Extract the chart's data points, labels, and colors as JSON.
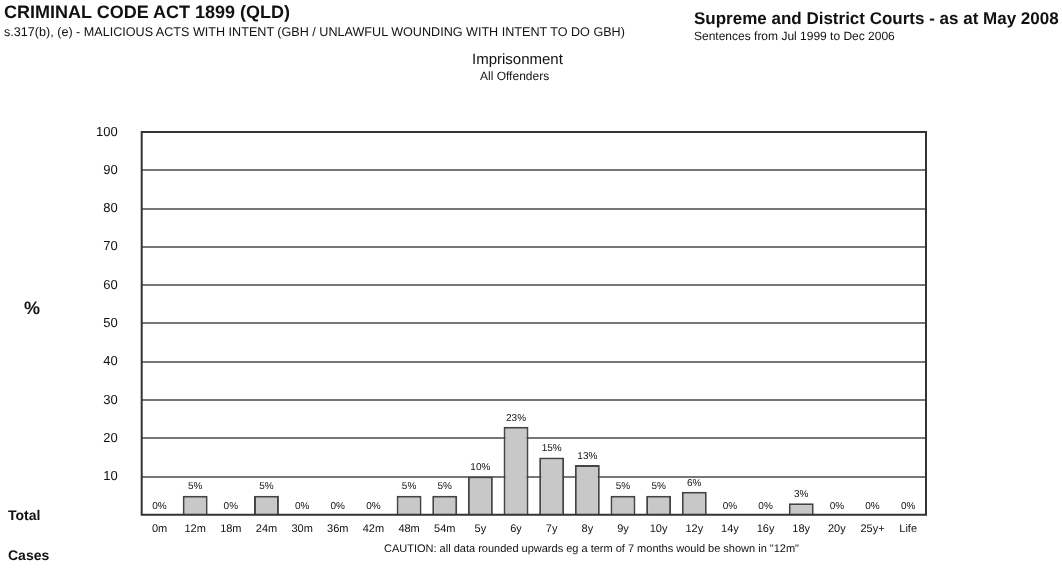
{
  "chart_data": {
    "type": "bar",
    "title": "CRIMINAL CODE ACT 1899 (QLD)",
    "subtitle": "s.317(b), (e) - MALICIOUS ACTS WITH INTENT (GBH  / UNLAWFUL WOUNDING WITH INTENT TO DO GBH)",
    "ylabel": "%",
    "annotations": [
      "Supreme and District Courts - as at May 2008",
      "Sentences from Jul 1999 to Dec 2006",
      "Imprisonment",
      "All Offenders",
      "Total",
      "Cases",
      "CAUTION: all data rounded upwards eg a term of 7 months would be shown in \"12m\""
    ],
    "categories": [
      "0m",
      "12m",
      "18m",
      "24m",
      "30m",
      "36m",
      "42m",
      "48m",
      "54m",
      "5y",
      "6y",
      "7y",
      "8y",
      "9y",
      "10y",
      "12y",
      "14y",
      "16y",
      "18y",
      "20y",
      "25y+",
      "Life"
    ],
    "values": [
      0,
      5,
      0,
      5,
      0,
      0,
      0,
      5,
      5,
      10,
      23,
      15,
      13,
      5,
      5,
      6,
      0,
      0,
      3,
      0,
      0,
      0
    ],
    "value_labels": [
      "0%",
      "5%",
      "0%",
      "5%",
      "0%",
      "0%",
      "0%",
      "5%",
      "5%",
      "10%",
      "23%",
      "15%",
      "13%",
      "5%",
      "5%",
      "6%",
      "0%",
      "0%",
      "3%",
      "0%",
      "0%",
      "0%"
    ],
    "color": "#c8c8c8",
    "ylim": [
      0,
      100
    ],
    "yticks": [
      10,
      20,
      30,
      40,
      50,
      60,
      70,
      80,
      90,
      100
    ],
    "grid": "y"
  }
}
